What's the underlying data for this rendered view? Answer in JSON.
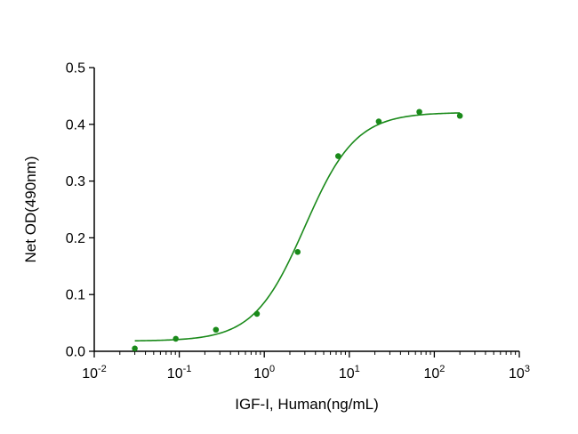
{
  "chart_data": {
    "type": "scatter",
    "title": "",
    "xlabel": "IGF-I, Human(ng/mL)",
    "ylabel": "Net OD(490nm)",
    "x_scale": "log",
    "xlim": [
      0.01,
      1000
    ],
    "ylim": [
      0,
      0.5
    ],
    "x_tick_labels": [
      {
        "base": "10",
        "exp": "-2"
      },
      {
        "base": "10",
        "exp": "-1"
      },
      {
        "base": "10",
        "exp": "0"
      },
      {
        "base": "10",
        "exp": "1"
      },
      {
        "base": "10",
        "exp": "2"
      },
      {
        "base": "10",
        "exp": "3"
      }
    ],
    "y_tick_labels": [
      "0.0",
      "0.1",
      "0.2",
      "0.3",
      "0.4",
      "0.5"
    ],
    "y_ticks": [
      0,
      0.1,
      0.2,
      0.3,
      0.4,
      0.5
    ],
    "grid": false,
    "series": [
      {
        "color": "#1a8a1a",
        "points": [
          {
            "x": 0.03,
            "y": 0.005
          },
          {
            "x": 0.091,
            "y": 0.022
          },
          {
            "x": 0.27,
            "y": 0.038
          },
          {
            "x": 0.82,
            "y": 0.066
          },
          {
            "x": 2.47,
            "y": 0.175
          },
          {
            "x": 7.4,
            "y": 0.344
          },
          {
            "x": 22.2,
            "y": 0.405
          },
          {
            "x": 66.7,
            "y": 0.422
          },
          {
            "x": 200,
            "y": 0.415
          }
        ],
        "fit": {
          "model": "4PL",
          "bottom": 0.018,
          "top": 0.421,
          "ec50": 3.0,
          "hill": 1.45,
          "x_range": [
            0.03,
            200
          ]
        }
      }
    ]
  }
}
